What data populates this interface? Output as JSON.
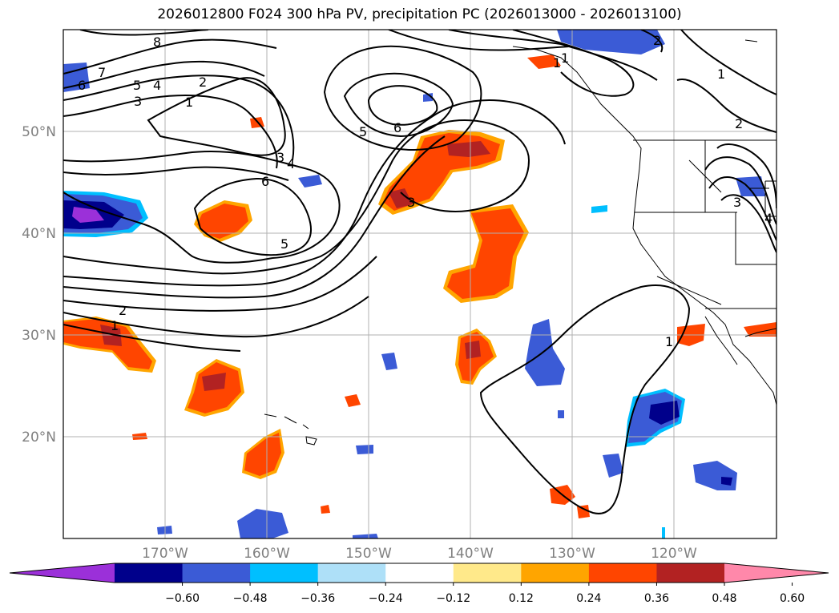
{
  "title": "2026012800 F024 300 hPa PV, precipitation PC (2026013000 - 2026013100)",
  "map": {
    "lon_range": [
      -180,
      -110
    ],
    "lat_range": [
      10,
      60
    ],
    "lat_ticks": [
      "50°N",
      "40°N",
      "30°N",
      "20°N"
    ],
    "lon_ticks": [
      "170°W",
      "160°W",
      "150°W",
      "140°W",
      "130°W",
      "120°W"
    ],
    "pv_contour_labels": [
      "8",
      "7",
      "6",
      "5",
      "4",
      "3",
      "2",
      "1",
      "1",
      "6",
      "5",
      "3",
      "4",
      "6",
      "5",
      "3",
      "2",
      "1",
      "1",
      "2",
      "1",
      "2",
      "3",
      "4",
      "1"
    ]
  },
  "colorbar": {
    "ticks": [
      "−0.60",
      "−0.48",
      "−0.36",
      "−0.24",
      "−0.12",
      "0.12",
      "0.24",
      "0.36",
      "0.48",
      "0.60"
    ],
    "colors": [
      "#9b30d9",
      "#00008b",
      "#3b5bd6",
      "#00bfff",
      "#aee0f8",
      "#ffffff",
      "#ffe98a",
      "#ffa500",
      "#ff4500",
      "#b22222",
      "#ff88aa"
    ]
  },
  "colors": {
    "positive_strong": "#ff4500",
    "positive_max": "#b22222",
    "positive_edge": "#ffa500",
    "negative_strong": "#3b5bd6",
    "negative_max": "#00008b",
    "negative_edge": "#00bfff",
    "grid": "#b0b0b0",
    "contour": "#000000"
  }
}
